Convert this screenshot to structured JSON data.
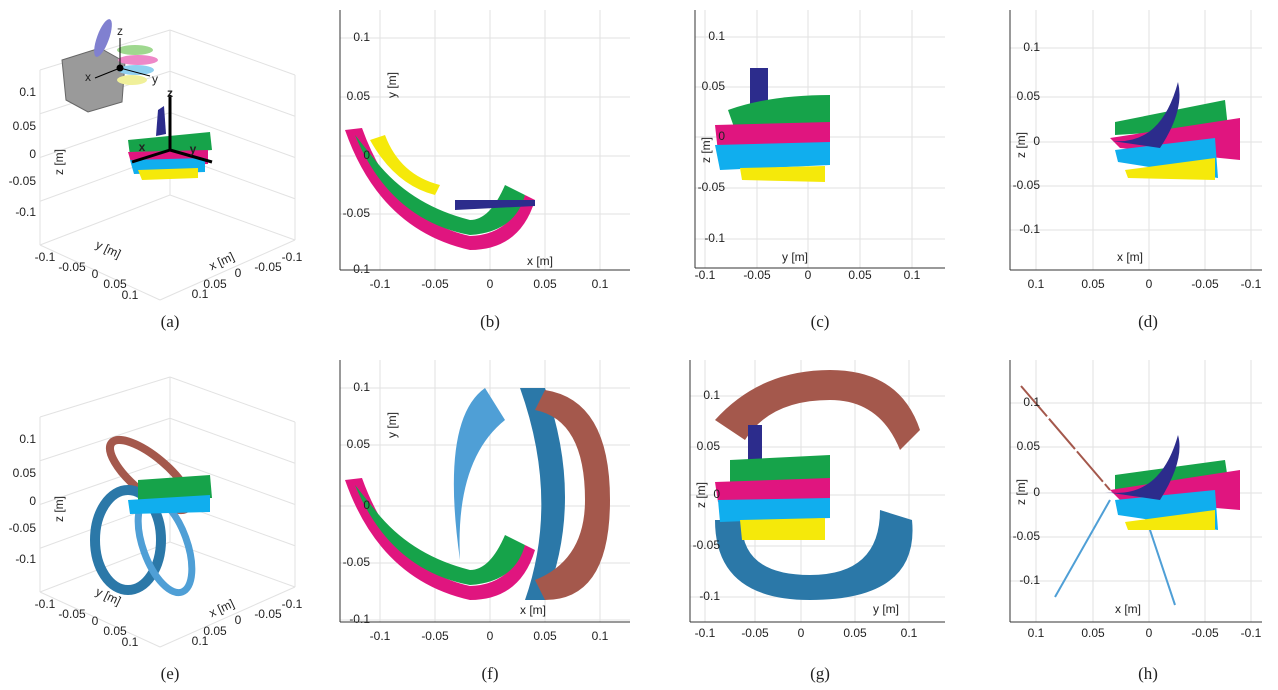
{
  "panels": [
    {
      "caption": "(a)",
      "x_label": "x [m]",
      "y_label": "y [m]",
      "z_label": "z [m]",
      "x_ticks": [
        "0.1",
        "0.05",
        "0",
        "-0.05",
        "-0.1"
      ],
      "y_ticks": [
        "-0.1",
        "-0.05",
        "0",
        "0.05",
        "0.1"
      ],
      "z_ticks": [
        "0.1",
        "0.05",
        "0",
        "-0.05",
        "-0.1"
      ],
      "hand_axes": [
        "x",
        "y",
        "z"
      ],
      "frame_axes": [
        "x",
        "y",
        "z"
      ]
    },
    {
      "caption": "(b)",
      "x_label": "x [m]",
      "y_label": "y [m]",
      "x_ticks": [
        "-0.1",
        "-0.05",
        "0",
        "0.05",
        "0.1"
      ],
      "y_ticks": [
        "0.1",
        "0.05",
        "0",
        "-0.05",
        "-0.1"
      ]
    },
    {
      "caption": "(c)",
      "x_label": "y [m]",
      "y_label": "z [m]",
      "x_ticks": [
        "-0.1",
        "-0.05",
        "0",
        "0.05",
        "0.1"
      ],
      "y_ticks": [
        "0.1",
        "0.05",
        "0",
        "-0.05",
        "-0.1"
      ]
    },
    {
      "caption": "(d)",
      "x_label": "x [m]",
      "y_label": "z [m]",
      "x_ticks": [
        "0.1",
        "0.05",
        "0",
        "-0.05",
        "-0.1"
      ],
      "y_ticks": [
        "0.1",
        "0.05",
        "0",
        "-0.05",
        "-0.1"
      ]
    },
    {
      "caption": "(e)",
      "x_label": "x [m]",
      "y_label": "y [m]",
      "z_label": "z [m]",
      "x_ticks": [
        "0.1",
        "0.05",
        "0",
        "-0.05",
        "-0.1"
      ],
      "y_ticks": [
        "-0.1",
        "-0.05",
        "0",
        "0.05",
        "0.1"
      ],
      "z_ticks": [
        "0.1",
        "0.05",
        "0",
        "-0.05",
        "-0.1"
      ]
    },
    {
      "caption": "(f)",
      "x_label": "x [m]",
      "y_label": "y [m]",
      "x_ticks": [
        "-0.1",
        "-0.05",
        "0",
        "0.05",
        "0.1"
      ],
      "y_ticks": [
        "0.1",
        "0.05",
        "0",
        "-0.05",
        "-0.1"
      ]
    },
    {
      "caption": "(g)",
      "x_label": "y [m]",
      "y_label": "z [m]",
      "x_ticks": [
        "-0.1",
        "-0.05",
        "0",
        "0.05",
        "0.1"
      ],
      "y_ticks": [
        "0.1",
        "0.05",
        "0",
        "-0.05",
        "-0.1"
      ]
    },
    {
      "caption": "(h)",
      "x_label": "x [m]",
      "y_label": "z [m]",
      "x_ticks": [
        "0.1",
        "0.05",
        "0",
        "-0.05",
        "-0.1"
      ],
      "y_ticks": [
        "0.1",
        "0.05",
        "0",
        "-0.05",
        "-0.1"
      ]
    }
  ]
}
